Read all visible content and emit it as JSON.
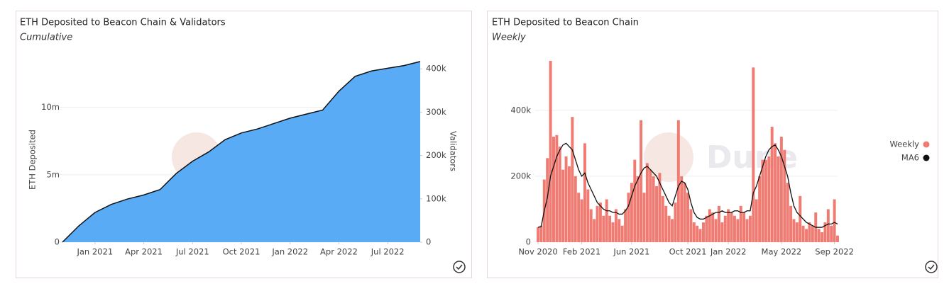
{
  "chart_data": [
    {
      "type": "area",
      "title": "ETH Deposited to Beacon Chain & Validators",
      "subtitle": "Cumulative",
      "watermark": "Dune",
      "ylabel": "ETH Deposited",
      "y2label": "Validators",
      "color": "#5aabf6",
      "x": [
        "2020-11",
        "2020-12",
        "2021-01",
        "2021-02",
        "2021-03",
        "2021-04",
        "2021-05",
        "2021-06",
        "2021-07",
        "2021-08",
        "2021-09",
        "2021-10",
        "2021-11",
        "2021-12",
        "2022-01",
        "2022-02",
        "2022-03",
        "2022-04",
        "2022-05",
        "2022-06",
        "2022-07",
        "2022-08",
        "2022-09"
      ],
      "values": [
        0,
        1200000,
        2200000,
        2800000,
        3200000,
        3500000,
        3900000,
        5100000,
        6000000,
        6700000,
        7600000,
        8100000,
        8400000,
        8800000,
        9200000,
        9500000,
        9800000,
        11200000,
        12300000,
        12700000,
        12900000,
        13100000,
        13400000
      ],
      "xlim": [
        "2020-11",
        "2022-09"
      ],
      "xticks": [
        {
          "value": "2021-01",
          "label": "Jan 2021"
        },
        {
          "value": "2021-04",
          "label": "Apr 2021"
        },
        {
          "value": "2021-07",
          "label": "Jul 2021"
        },
        {
          "value": "2021-10",
          "label": "Oct 2021"
        },
        {
          "value": "2022-01",
          "label": "Jan 2022"
        },
        {
          "value": "2022-04",
          "label": "Apr 2022"
        },
        {
          "value": "2022-07",
          "label": "Jul 2022"
        }
      ],
      "ylim": [
        0,
        13500000
      ],
      "yticks": [
        0,
        {
          "value": 5000000,
          "label": "5m"
        },
        {
          "value": 10000000,
          "label": "10m"
        }
      ],
      "y2lim": [
        0,
        420000
      ],
      "y2ticks": [
        0,
        {
          "value": 100000,
          "label": "100k"
        },
        {
          "value": 200000,
          "label": "200k"
        },
        {
          "value": 300000,
          "label": "300k"
        },
        {
          "value": 400000,
          "label": "400k"
        }
      ],
      "grid": true
    },
    {
      "type": "bar",
      "title": "ETH Deposited to Beacon Chain",
      "subtitle": "Weekly",
      "watermark": "Dune",
      "categories": [
        null,
        null,
        null,
        null,
        null,
        null,
        null,
        null,
        null,
        null,
        null,
        null,
        null,
        null,
        null,
        null,
        null,
        null,
        null,
        null,
        null,
        null,
        null,
        null,
        null,
        null,
        null,
        null,
        null,
        null,
        null,
        null,
        null,
        null,
        null,
        null,
        null,
        null,
        null,
        null,
        null,
        null,
        null,
        null,
        null,
        null,
        null,
        null,
        null,
        null,
        null,
        null,
        null,
        null,
        null,
        null,
        null,
        null,
        null,
        null,
        null,
        null,
        null,
        null,
        null,
        null,
        null,
        null,
        null,
        null,
        null,
        null,
        null,
        null,
        null,
        null,
        null,
        null,
        null,
        null,
        null,
        null,
        null,
        null,
        null,
        null,
        null,
        null,
        null,
        null,
        null,
        null,
        null,
        null,
        null,
        null,
        null
      ],
      "series": [
        {
          "name": "Weekly",
          "color": "#f07b72",
          "values": [
            45000,
            50000,
            190000,
            255000,
            550000,
            320000,
            325000,
            290000,
            220000,
            260000,
            230000,
            380000,
            200000,
            150000,
            130000,
            300000,
            160000,
            100000,
            70000,
            110000,
            120000,
            80000,
            130000,
            80000,
            60000,
            100000,
            70000,
            50000,
            100000,
            150000,
            180000,
            250000,
            200000,
            370000,
            150000,
            240000,
            220000,
            200000,
            170000,
            210000,
            140000,
            110000,
            80000,
            70000,
            120000,
            370000,
            200000,
            180000,
            150000,
            100000,
            60000,
            50000,
            40000,
            60000,
            80000,
            100000,
            90000,
            70000,
            110000,
            60000,
            80000,
            100000,
            90000,
            80000,
            70000,
            110000,
            90000,
            70000,
            80000,
            530000,
            130000,
            200000,
            250000,
            250000,
            260000,
            350000,
            300000,
            260000,
            320000,
            280000,
            180000,
            110000,
            70000,
            60000,
            140000,
            50000,
            40000,
            60000,
            50000,
            90000,
            40000,
            30000,
            60000,
            100000,
            50000,
            130000,
            20000
          ]
        },
        {
          "name": "MA6",
          "color": "#111111",
          "type": "line",
          "values": [
            45000,
            47000,
            95000,
            135000,
            200000,
            230000,
            260000,
            280000,
            295000,
            300000,
            290000,
            280000,
            250000,
            220000,
            200000,
            210000,
            180000,
            160000,
            140000,
            120000,
            110000,
            100000,
            95000,
            95000,
            90000,
            90000,
            85000,
            85000,
            95000,
            110000,
            140000,
            170000,
            190000,
            210000,
            225000,
            230000,
            220000,
            210000,
            200000,
            180000,
            160000,
            140000,
            120000,
            110000,
            140000,
            170000,
            185000,
            180000,
            160000,
            120000,
            90000,
            75000,
            70000,
            70000,
            75000,
            80000,
            85000,
            90000,
            90000,
            95000,
            90000,
            90000,
            90000,
            95000,
            95000,
            90000,
            90000,
            95000,
            95000,
            150000,
            170000,
            200000,
            230000,
            260000,
            280000,
            290000,
            295000,
            280000,
            260000,
            230000,
            200000,
            150000,
            110000,
            90000,
            80000,
            70000,
            60000,
            55000,
            50000,
            45000,
            45000,
            45000,
            50000,
            55000,
            55000,
            60000,
            55000
          ]
        }
      ],
      "xlim": [
        0,
        96
      ],
      "xticks": [
        {
          "value": 0,
          "label": "Nov 2020"
        },
        {
          "value": 14,
          "label": "Feb 2021"
        },
        {
          "value": 30,
          "label": "Jun 2021"
        },
        {
          "value": 48,
          "label": "Oct 2021"
        },
        {
          "value": 61,
          "label": "Jan 2022"
        },
        {
          "value": 78,
          "label": "May 2022"
        },
        {
          "value": 95,
          "label": "Sep 2022"
        }
      ],
      "ylim": [
        0,
        550000
      ],
      "yticks": [
        0,
        {
          "value": 200000,
          "label": "200k"
        },
        {
          "value": 400000,
          "label": "400k"
        }
      ],
      "grid": true,
      "legend": "right"
    }
  ]
}
